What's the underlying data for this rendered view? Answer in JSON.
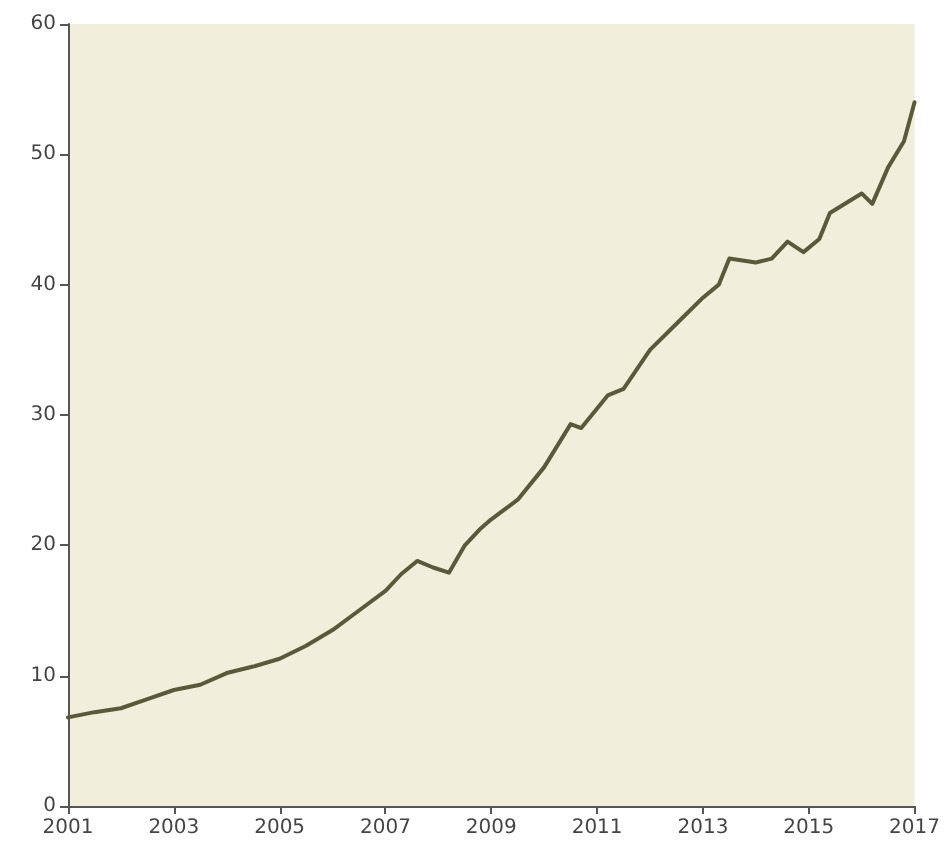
{
  "chart_data": {
    "type": "line",
    "x": [
      2001,
      2001.5,
      2002,
      2002.5,
      2003,
      2003.5,
      2004,
      2004.5,
      2005,
      2005.5,
      2006,
      2006.5,
      2007,
      2007.3,
      2007.6,
      2007.9,
      2008.2,
      2008.5,
      2008.8,
      2009,
      2009.5,
      2010,
      2010.5,
      2010.7,
      2011,
      2011.2,
      2011.5,
      2012,
      2012.5,
      2013,
      2013.3,
      2013.5,
      2014,
      2014.3,
      2014.6,
      2014.9,
      2015.2,
      2015.4,
      2015.8,
      2016,
      2016.2,
      2016.5,
      2016.8,
      2017
    ],
    "series": [
      {
        "color": "#5a5a3a",
        "values": [
          6.8,
          7.2,
          7.5,
          8.2,
          8.9,
          9.3,
          10.2,
          10.7,
          11.3,
          12.3,
          13.5,
          15,
          16.5,
          17.8,
          18.8,
          18.3,
          17.9,
          20,
          21.3,
          22,
          23.5,
          26,
          29.3,
          29,
          30.5,
          31.5,
          32,
          35,
          37,
          39,
          40,
          42,
          41.7,
          42,
          43.3,
          42.5,
          43.5,
          45.5,
          46.5,
          47,
          46.2,
          49,
          51,
          54
        ]
      }
    ],
    "xlim": [
      2001,
      2017
    ],
    "xticks": [
      2001,
      2003,
      2005,
      2007,
      2009,
      2011,
      2013,
      2015,
      2017
    ],
    "ylim": [
      0,
      60
    ],
    "yticks": [
      0,
      10,
      20,
      30,
      40,
      50,
      60
    ],
    "grid": false,
    "marker": "none",
    "line_style": "solid"
  }
}
